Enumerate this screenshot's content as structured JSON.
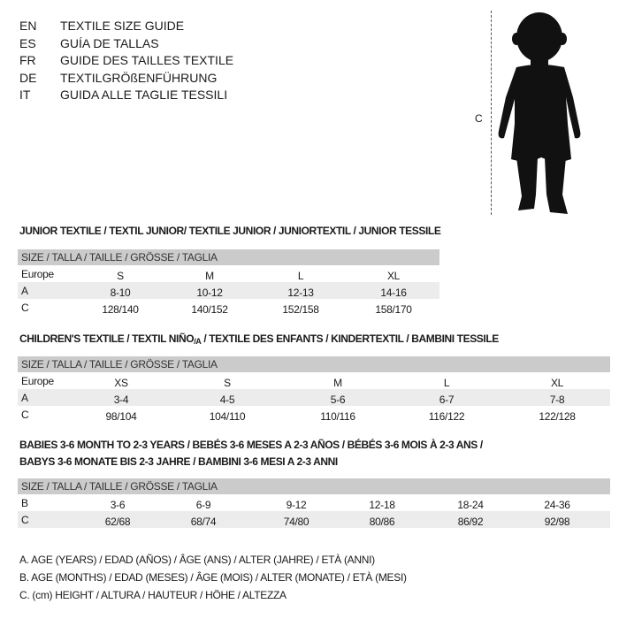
{
  "languages": [
    {
      "code": "EN",
      "name": "TEXTILE SIZE GUIDE"
    },
    {
      "code": "ES",
      "name": "GUÍA DE TALLAS"
    },
    {
      "code": "FR",
      "name": "GUIDE DES TAILLES TEXTILE"
    },
    {
      "code": "DE",
      "name": "TEXTILGRÖßENFÜHRUNG"
    },
    {
      "code": "IT",
      "name": "GUIDA ALLE TAGLIE TESSILI"
    }
  ],
  "figure": {
    "height_label": "C",
    "icon": "child-silhouette-icon"
  },
  "junior": {
    "title": "JUNIOR TEXTILE / TEXTIL JUNIOR/ TEXTILE JUNIOR / JUNIORTEXTIL / JUNIOR TESSILE",
    "header": "SIZE / TALLA / TAILLE / GRÖSSE / TAGLIA",
    "rows": [
      {
        "label": "Europe",
        "values": [
          "S",
          "M",
          "L",
          "XL"
        ]
      },
      {
        "label": "A",
        "values": [
          "8-10",
          "10-12",
          "12-13",
          "14-16"
        ]
      },
      {
        "label": "C",
        "values": [
          "128/140",
          "140/152",
          "152/158",
          "158/170"
        ]
      }
    ]
  },
  "children": {
    "title_a": "CHILDREN'S TEXTILE / TEXTIL NIÑO",
    "title_sub": "/A",
    "title_b": " / TEXTILE DES ENFANTS / KINDERTEXTIL / BAMBINI TESSILE",
    "header": "SIZE / TALLA / TAILLE / GRÖSSE / TAGLIA",
    "rows": [
      {
        "label": "Europe",
        "values": [
          "XS",
          "S",
          "M",
          "L",
          "XL"
        ]
      },
      {
        "label": "A",
        "values": [
          "3-4",
          "4-5",
          "5-6",
          "6-7",
          "7-8"
        ]
      },
      {
        "label": "C",
        "values": [
          "98/104",
          "104/110",
          "110/116",
          "116/122",
          "122/128"
        ]
      }
    ]
  },
  "babies": {
    "title_line1": "BABIES 3-6 MONTH TO 2-3 YEARS / BEBÉS 3-6 MESES A 2-3 AÑOS / BÉBÉS 3-6 MOIS À 2-3 ANS /",
    "title_line2": "BABYS 3-6 MONATE BIS 2-3 JAHRE / BAMBINI 3-6 MESI A 2-3 ANNI",
    "header": "SIZE / TALLA / TAILLE / GRÖSSE / TAGLIA",
    "rows": [
      {
        "label": "B",
        "values": [
          "3-6",
          "6-9",
          "9-12",
          "12-18",
          "18-24",
          "24-36"
        ]
      },
      {
        "label": "C",
        "values": [
          "62/68",
          "68/74",
          "74/80",
          "80/86",
          "86/92",
          "92/98"
        ]
      }
    ]
  },
  "legend": [
    "A. AGE (YEARS) / EDAD (AÑOS) / ÂGE (ANS) / ALTER (JAHRE) / ETÀ (ANNI)",
    "B. AGE (MONTHS) / EDAD (MESES) / ÂGE (MOIS) / ALTER (MONATE) / ETÀ (MESI)",
    "C. (cm) HEIGHT / ALTURA / HAUTEUR / HÖHE / ALTEZZA"
  ]
}
